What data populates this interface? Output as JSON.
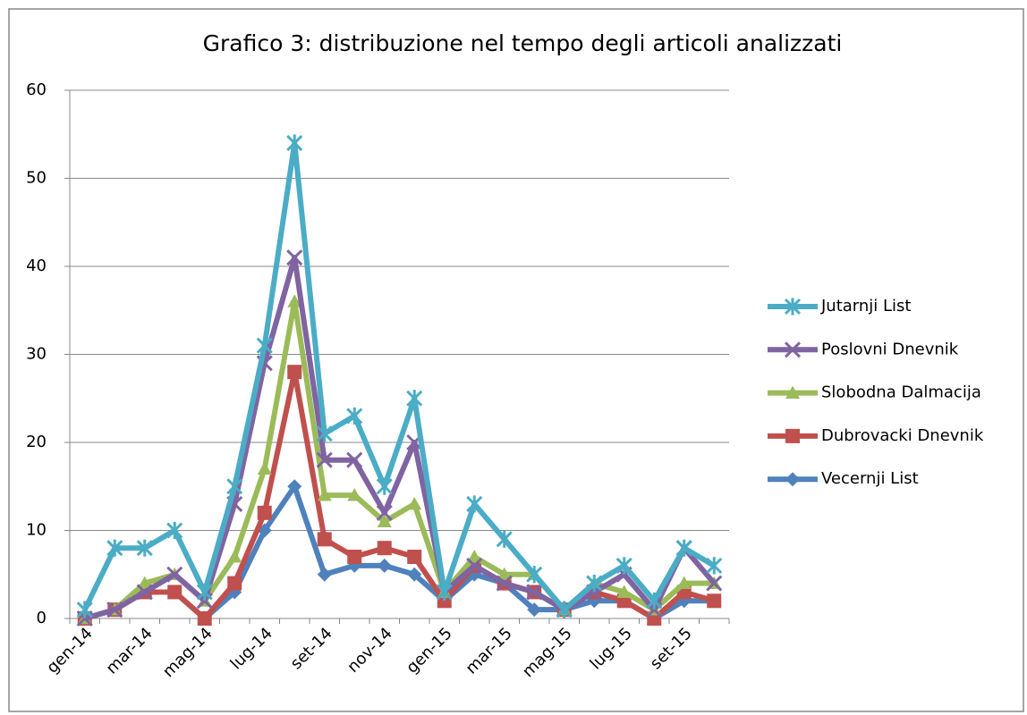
{
  "chart_data": {
    "type": "line",
    "title": "Grafico 3: distribuzione nel tempo degli articoli analizzati",
    "categories": [
      "gen-14",
      null,
      "mar-14",
      null,
      "mag-14",
      null,
      "lug-14",
      null,
      "set-14",
      null,
      "nov-14",
      null,
      "gen-15",
      null,
      "mar-15",
      null,
      "mag-15",
      null,
      "lug-15",
      null,
      "set-15",
      null
    ],
    "series": [
      {
        "name": "Jutarnji List",
        "color": "#4bacc6",
        "marker": "asterisk",
        "values": [
          1,
          8,
          8,
          10,
          3,
          15,
          31,
          54,
          21,
          23,
          15,
          25,
          3,
          13,
          9,
          5,
          1,
          4,
          6,
          2,
          8,
          6
        ]
      },
      {
        "name": "Poslovni Dnevnik",
        "color": "#8064a2",
        "marker": "x",
        "values": [
          0,
          1,
          3,
          5,
          2,
          13,
          29,
          41,
          18,
          18,
          12,
          20,
          3,
          6,
          4,
          3,
          1,
          3,
          5,
          1,
          8,
          4
        ]
      },
      {
        "name": "Slobodna Dalmacija",
        "color": "#9bbb59",
        "marker": "triangle",
        "values": [
          0,
          1,
          4,
          5,
          2,
          7,
          17,
          36,
          14,
          14,
          11,
          13,
          3,
          7,
          5,
          5,
          1,
          4,
          3,
          1,
          4,
          4
        ]
      },
      {
        "name": "Dubrovacki Dnevnik",
        "color": "#c0504d",
        "marker": "square",
        "values": [
          0,
          1,
          3,
          3,
          0,
          4,
          12,
          28,
          9,
          7,
          8,
          7,
          2,
          6,
          4,
          3,
          1,
          3,
          2,
          0,
          3,
          2
        ]
      },
      {
        "name": "Vecernji List",
        "color": "#4f81bd",
        "marker": "diamond",
        "values": [
          0,
          1,
          3,
          3,
          0,
          3,
          10,
          15,
          5,
          6,
          6,
          5,
          2,
          5,
          4,
          1,
          1,
          2,
          2,
          0,
          2,
          2
        ]
      }
    ],
    "ylim": [
      0,
      60
    ],
    "yticks": [
      0,
      10,
      20,
      30,
      40,
      50,
      60
    ],
    "grid": true,
    "legend": "right"
  }
}
